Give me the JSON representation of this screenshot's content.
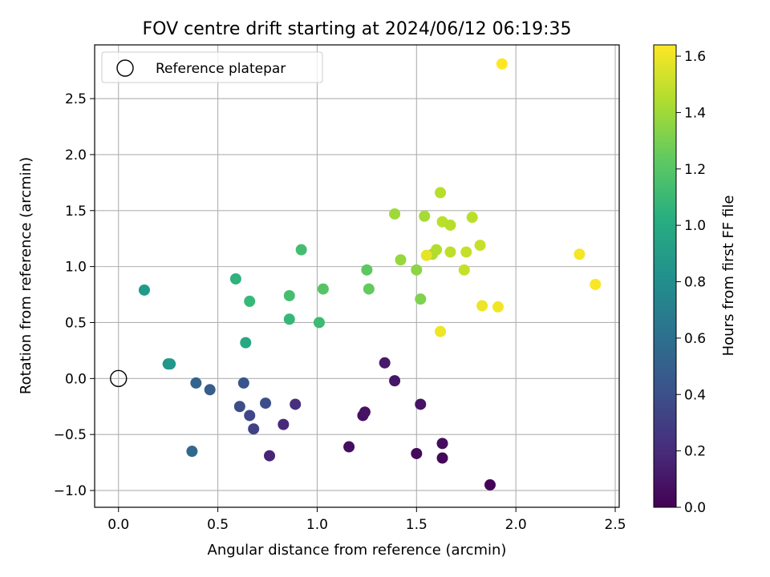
{
  "chart_data": {
    "type": "scatter",
    "title": "FOV centre drift starting at 2024/06/12 06:19:35",
    "xlabel": "Angular distance from reference (arcmin)",
    "ylabel": "Rotation from reference (arcmin)",
    "xlim": [
      -0.12,
      2.52
    ],
    "ylim": [
      -1.15,
      2.98
    ],
    "xticks": [
      0.0,
      0.5,
      1.0,
      1.5,
      2.0,
      2.5
    ],
    "xtick_labels": [
      "0.0",
      "0.5",
      "1.0",
      "1.5",
      "2.0",
      "2.5"
    ],
    "yticks": [
      -1.0,
      -0.5,
      0.0,
      0.5,
      1.0,
      1.5,
      2.0,
      2.5
    ],
    "ytick_labels": [
      "−1.0",
      "−0.5",
      "0.0",
      "0.5",
      "1.0",
      "1.5",
      "2.0",
      "2.5"
    ],
    "grid": true,
    "legend": {
      "placement": "upper-left",
      "entries": [
        "Reference platepar"
      ]
    },
    "reference_point": {
      "x": 0.0,
      "y": 0.0,
      "marker": "open-circle",
      "color": "#000000"
    },
    "colorbar": {
      "label": "Hours from first FF file",
      "colormap": "viridis",
      "range": [
        0.0,
        1.64
      ],
      "ticks": [
        0.0,
        0.2,
        0.4,
        0.6,
        0.8,
        1.0,
        1.2,
        1.4,
        1.6
      ],
      "tick_labels": [
        "0.0",
        "0.2",
        "0.4",
        "0.6",
        "0.8",
        "1.0",
        "1.2",
        "1.4",
        "1.6"
      ]
    },
    "points": [
      {
        "x": 1.87,
        "y": -0.95,
        "t": 0.02
      },
      {
        "x": 1.63,
        "y": -0.71,
        "t": 0.03
      },
      {
        "x": 1.5,
        "y": -0.67,
        "t": 0.04
      },
      {
        "x": 1.63,
        "y": -0.58,
        "t": 0.05
      },
      {
        "x": 1.16,
        "y": -0.61,
        "t": 0.06
      },
      {
        "x": 1.23,
        "y": -0.33,
        "t": 0.07
      },
      {
        "x": 1.24,
        "y": -0.3,
        "t": 0.08
      },
      {
        "x": 1.52,
        "y": -0.23,
        "t": 0.09
      },
      {
        "x": 1.39,
        "y": -0.02,
        "t": 0.1
      },
      {
        "x": 1.34,
        "y": 0.14,
        "t": 0.11
      },
      {
        "x": 0.76,
        "y": -0.69,
        "t": 0.17
      },
      {
        "x": 0.83,
        "y": -0.41,
        "t": 0.2
      },
      {
        "x": 0.89,
        "y": -0.23,
        "t": 0.22
      },
      {
        "x": 0.68,
        "y": -0.45,
        "t": 0.32
      },
      {
        "x": 0.66,
        "y": -0.33,
        "t": 0.35
      },
      {
        "x": 0.61,
        "y": -0.25,
        "t": 0.38
      },
      {
        "x": 0.74,
        "y": -0.22,
        "t": 0.4
      },
      {
        "x": 0.63,
        "y": -0.04,
        "t": 0.43
      },
      {
        "x": 0.46,
        "y": -0.1,
        "t": 0.48
      },
      {
        "x": 0.39,
        "y": -0.04,
        "t": 0.52
      },
      {
        "x": 0.37,
        "y": -0.65,
        "t": 0.55
      },
      {
        "x": 0.25,
        "y": 0.13,
        "t": 0.85
      },
      {
        "x": 0.26,
        "y": 0.13,
        "t": 0.87
      },
      {
        "x": 0.13,
        "y": 0.79,
        "t": 0.9
      },
      {
        "x": 0.64,
        "y": 0.32,
        "t": 0.98
      },
      {
        "x": 0.59,
        "y": 0.89,
        "t": 1.05
      },
      {
        "x": 0.66,
        "y": 0.69,
        "t": 1.1
      },
      {
        "x": 0.86,
        "y": 0.53,
        "t": 1.09
      },
      {
        "x": 1.01,
        "y": 0.5,
        "t": 1.12
      },
      {
        "x": 0.86,
        "y": 0.74,
        "t": 1.15
      },
      {
        "x": 0.92,
        "y": 1.15,
        "t": 1.14
      },
      {
        "x": 1.03,
        "y": 0.8,
        "t": 1.2
      },
      {
        "x": 1.25,
        "y": 0.97,
        "t": 1.22
      },
      {
        "x": 1.26,
        "y": 0.8,
        "t": 1.24
      },
      {
        "x": 1.52,
        "y": 0.71,
        "t": 1.32
      },
      {
        "x": 1.5,
        "y": 0.97,
        "t": 1.35
      },
      {
        "x": 1.42,
        "y": 1.06,
        "t": 1.38
      },
      {
        "x": 1.39,
        "y": 1.47,
        "t": 1.4
      },
      {
        "x": 1.54,
        "y": 1.45,
        "t": 1.42
      },
      {
        "x": 1.58,
        "y": 1.11,
        "t": 1.44
      },
      {
        "x": 1.6,
        "y": 1.15,
        "t": 1.45
      },
      {
        "x": 1.62,
        "y": 1.66,
        "t": 1.46
      },
      {
        "x": 1.63,
        "y": 1.4,
        "t": 1.47
      },
      {
        "x": 1.67,
        "y": 1.37,
        "t": 1.46
      },
      {
        "x": 1.67,
        "y": 1.13,
        "t": 1.48
      },
      {
        "x": 1.74,
        "y": 0.97,
        "t": 1.5
      },
      {
        "x": 1.75,
        "y": 1.13,
        "t": 1.5
      },
      {
        "x": 1.78,
        "y": 1.44,
        "t": 1.47
      },
      {
        "x": 1.82,
        "y": 1.19,
        "t": 1.5
      },
      {
        "x": 1.55,
        "y": 1.1,
        "t": 1.58
      },
      {
        "x": 1.62,
        "y": 0.42,
        "t": 1.6
      },
      {
        "x": 1.83,
        "y": 0.65,
        "t": 1.6
      },
      {
        "x": 1.91,
        "y": 0.64,
        "t": 1.61
      },
      {
        "x": 2.32,
        "y": 1.11,
        "t": 1.62
      },
      {
        "x": 2.4,
        "y": 0.84,
        "t": 1.63
      },
      {
        "x": 1.93,
        "y": 2.81,
        "t": 1.64
      }
    ]
  }
}
